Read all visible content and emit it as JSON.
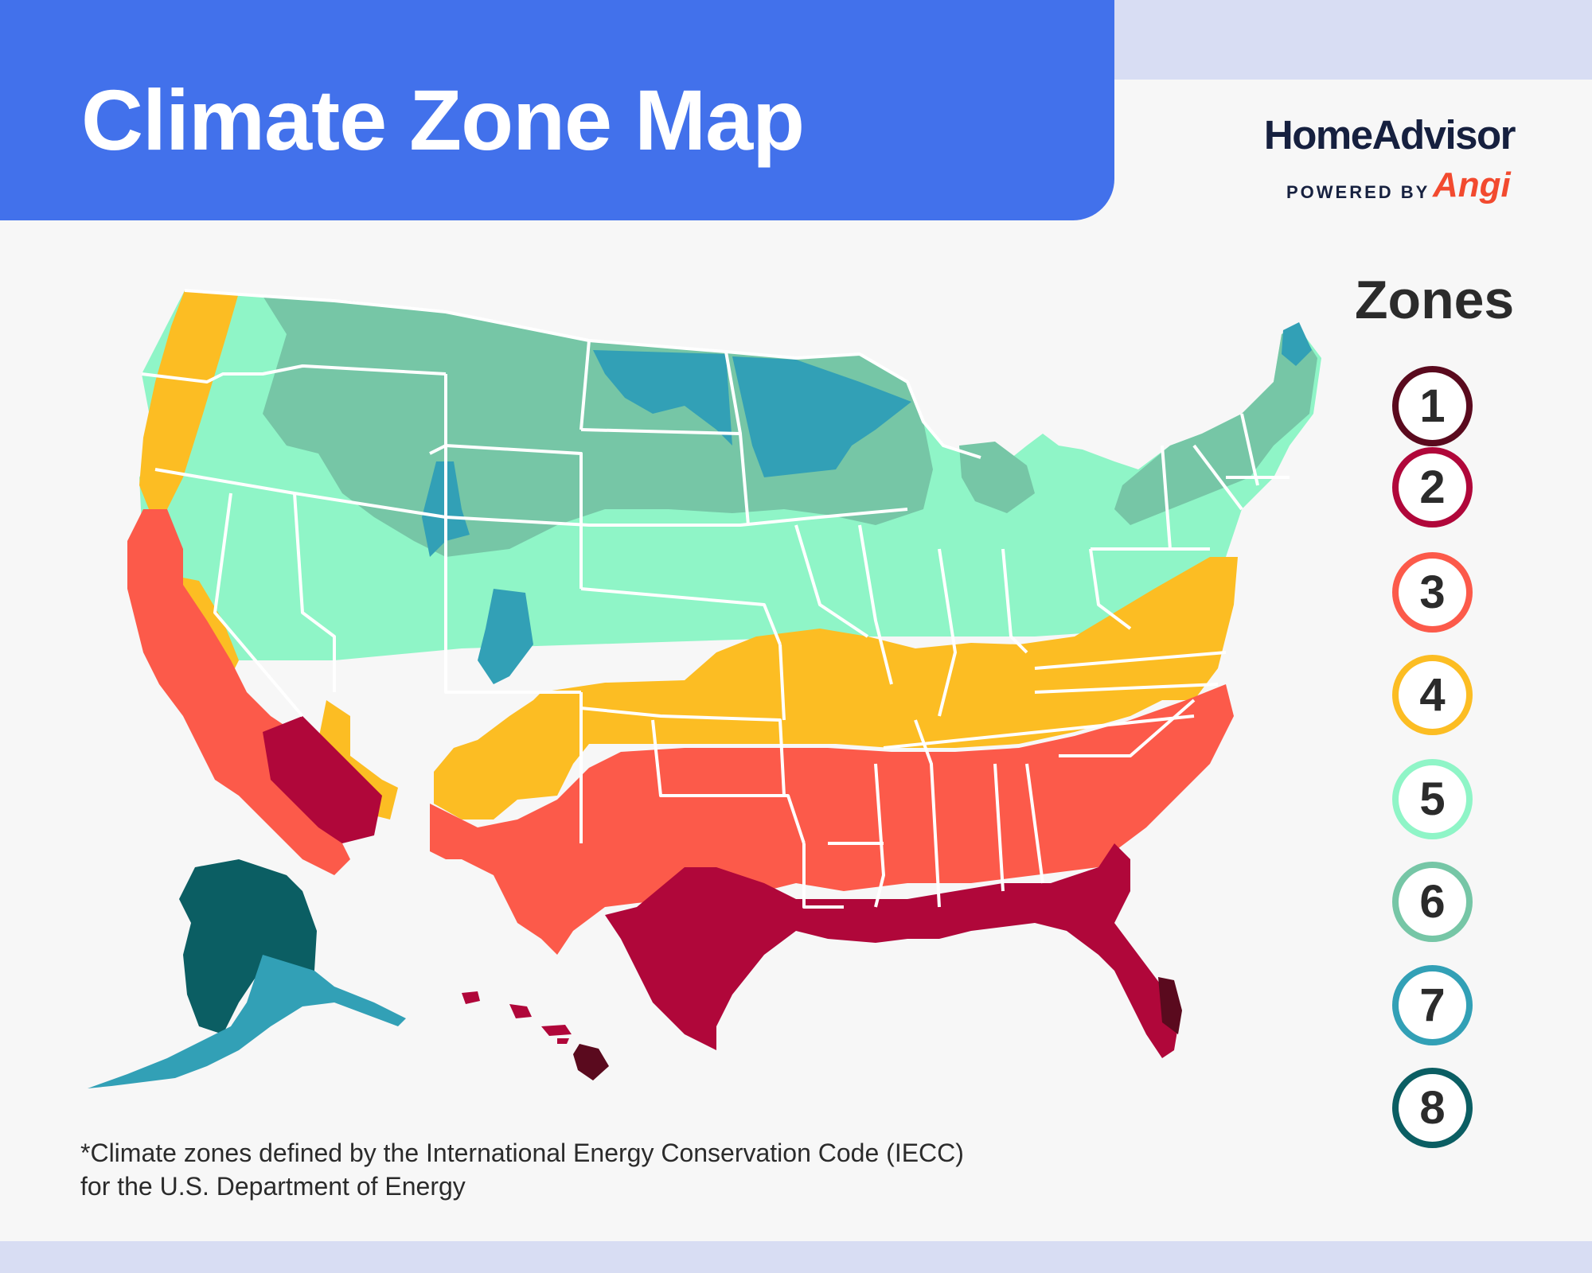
{
  "title": "Climate Zone Map",
  "brand": {
    "name": "HomeAdvisor",
    "powered_by": "POWERED BY",
    "partner": "Angi"
  },
  "legend": {
    "title": "Zones",
    "zones": [
      {
        "label": "1",
        "color": "#5a0a1e"
      },
      {
        "label": "2",
        "color": "#b0073a"
      },
      {
        "label": "3",
        "color": "#fc5a4a"
      },
      {
        "label": "4",
        "color": "#fcbd23"
      },
      {
        "label": "5",
        "color": "#8ff5c7"
      },
      {
        "label": "6",
        "color": "#76c6a6"
      },
      {
        "label": "7",
        "color": "#32a0b6"
      },
      {
        "label": "8",
        "color": "#0b5e63"
      }
    ]
  },
  "footnote": {
    "line1": "*Climate zones defined by the International Energy Conservation Code (IECC)",
    "line2": "for the U.S. Department of Energy"
  },
  "colors": {
    "banner": "#4271eb",
    "card_background": "#f7f7f7",
    "page_background": "#d8ddf3",
    "state_borders": "#ffffff"
  }
}
